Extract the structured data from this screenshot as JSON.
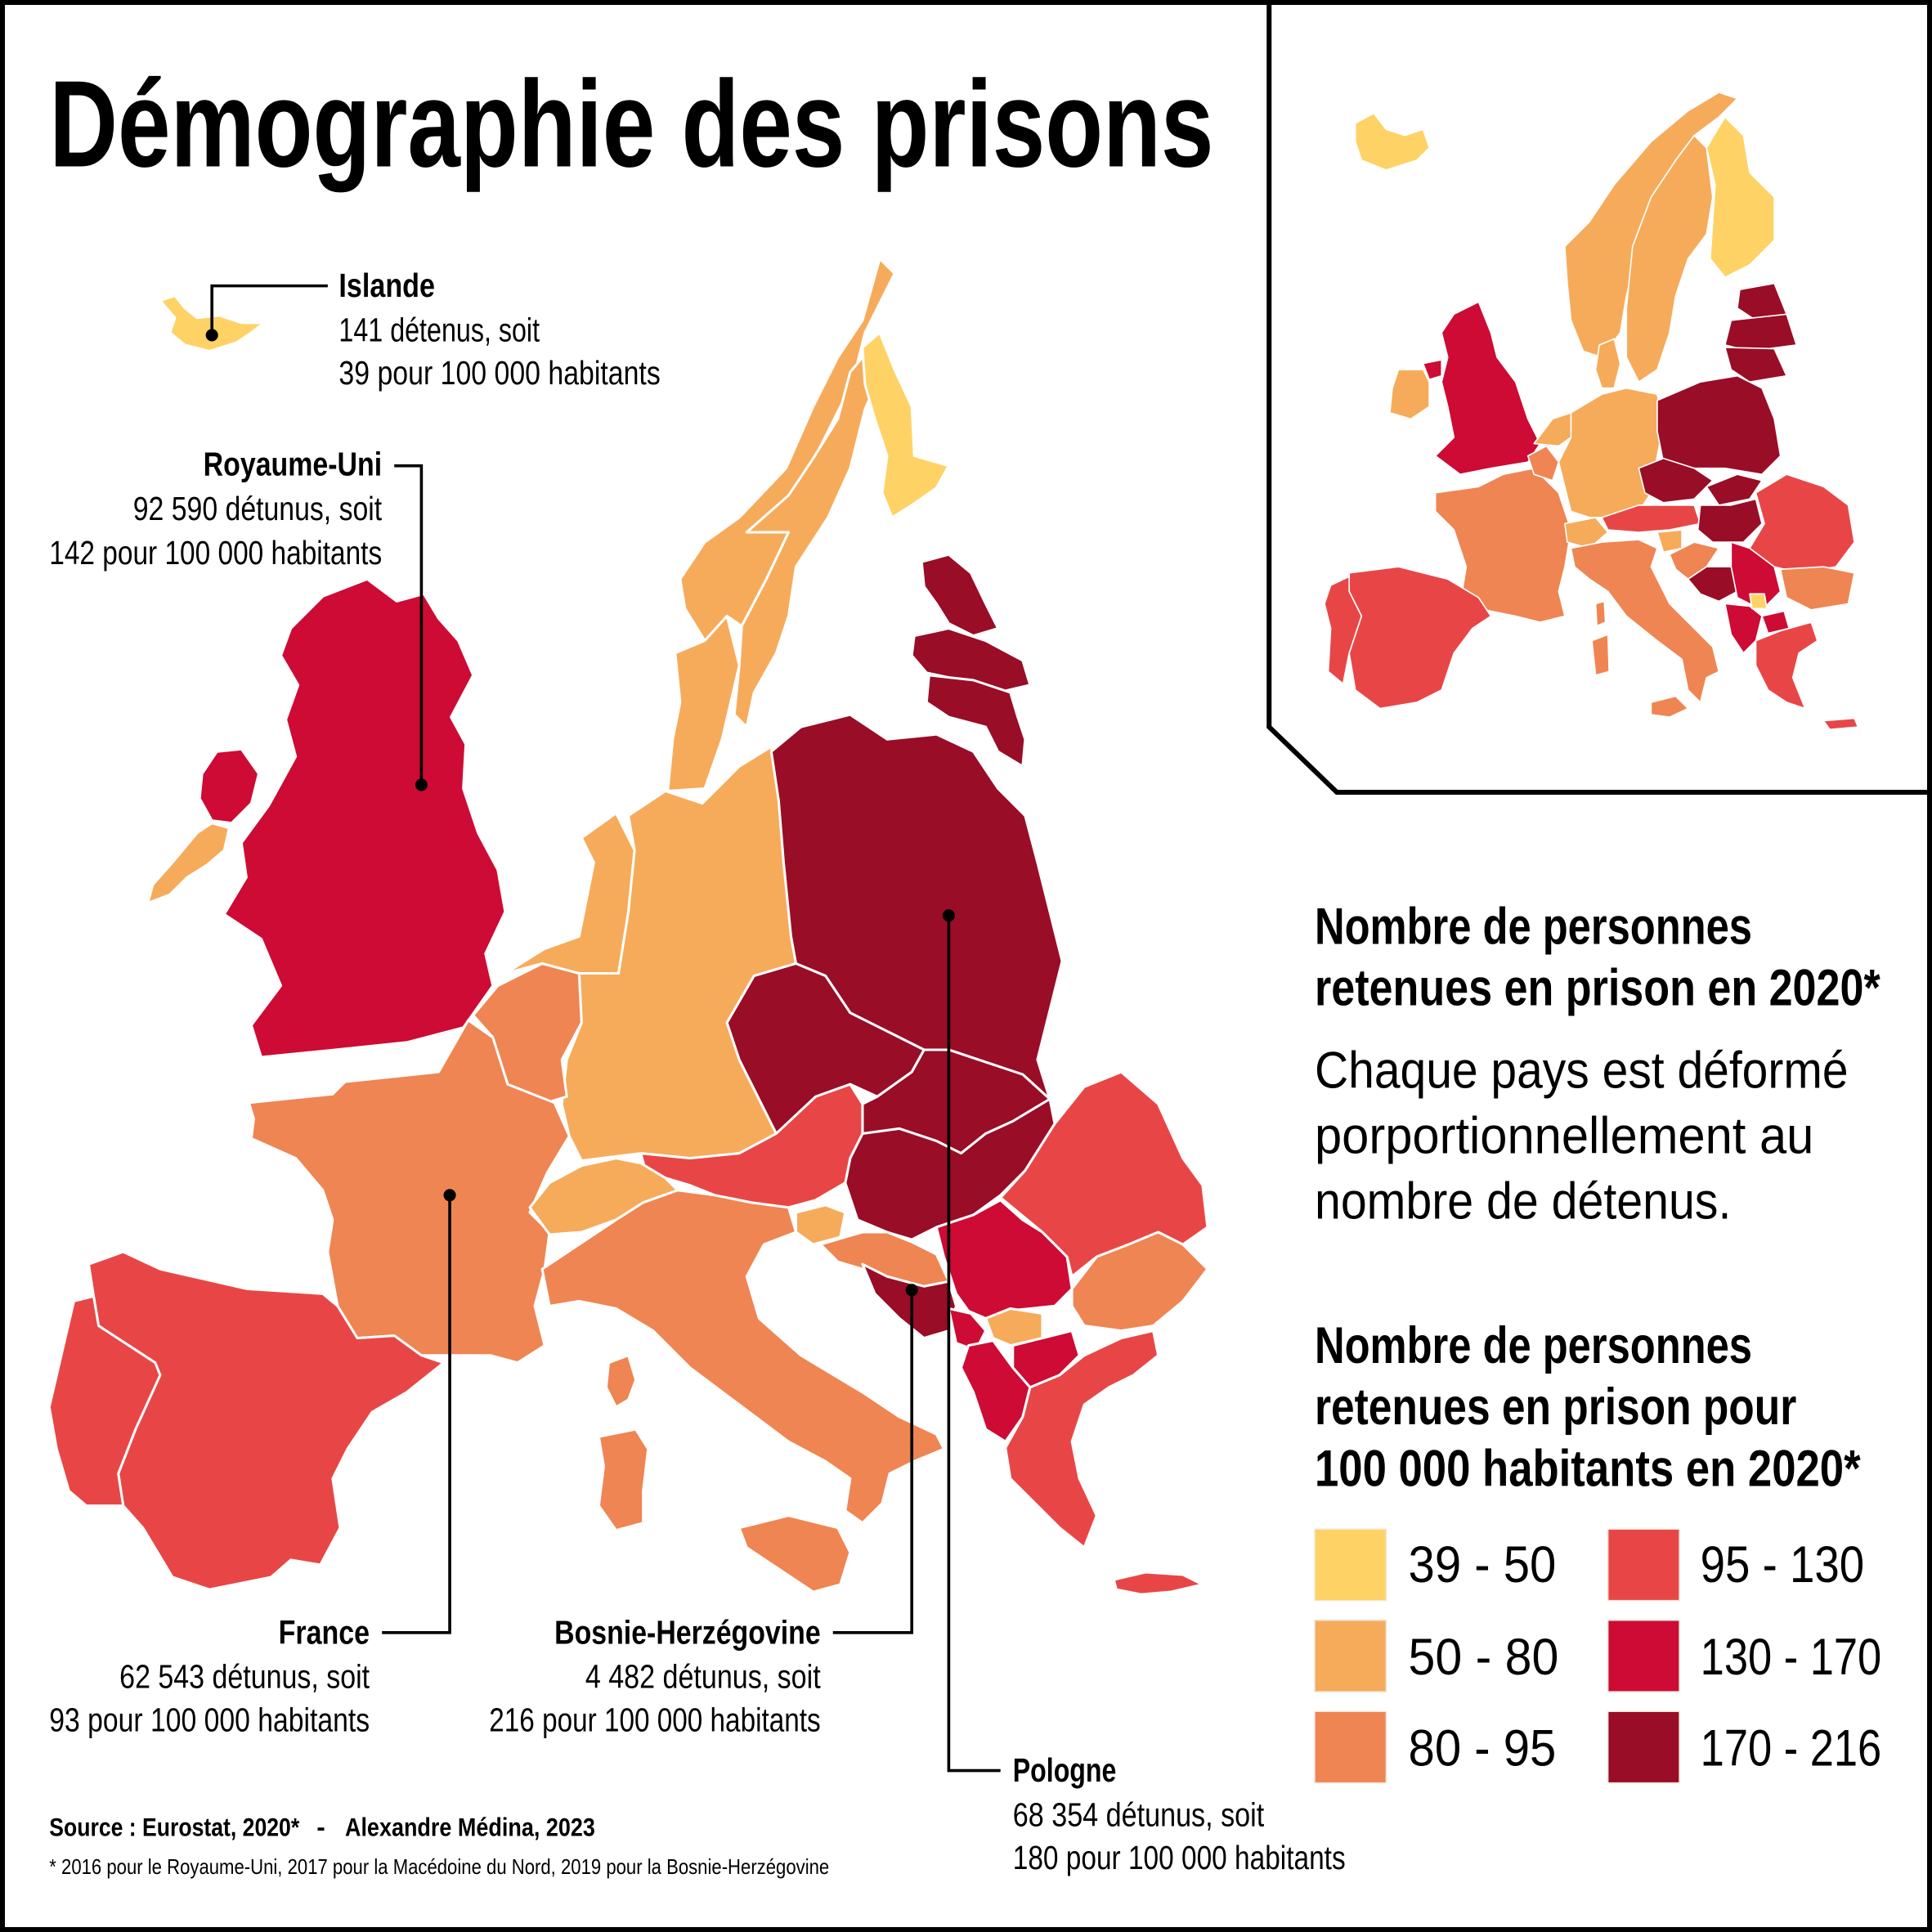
{
  "title": "Démographie des prisons",
  "callouts": {
    "iceland": {
      "name": "Islande",
      "line1": "141 détenus, soit",
      "line2": "39 pour 100 000 habitants"
    },
    "uk": {
      "name": "Royaume-Uni",
      "line1": "92 590 détunus, soit",
      "line2": "142 pour 100 000 habitants"
    },
    "france": {
      "name": "France",
      "line1": "62 543 détunus, soit",
      "line2": "93 pour 100 000 habitants"
    },
    "bosnia": {
      "name": "Bosnie-Herzégovine",
      "line1": "4 482 détunus, soit",
      "line2": "216 pour 100 000 habitants"
    },
    "poland": {
      "name": "Pologne",
      "line1": "68 354 détunus, soit",
      "line2": "180 pour 100 000 habitants"
    }
  },
  "legend": {
    "heading1": [
      "Nombre de personnes",
      "retenues en prison en 2020*"
    ],
    "description": [
      "Chaque pays est déformé",
      "porportionnellement au",
      "nombre de détenus."
    ],
    "heading2": [
      "Nombre de personnes",
      "retenues en prison pour",
      "100 000 habitants en 2020*"
    ],
    "bins": [
      {
        "label": "39 - 50",
        "color": "#FED265"
      },
      {
        "label": "50 - 80",
        "color": "#F6AB5B"
      },
      {
        "label": "80 - 95",
        "color": "#EF8552"
      },
      {
        "label": "95 - 130",
        "color": "#E84646"
      },
      {
        "label": "130 - 170",
        "color": "#CD0B34"
      },
      {
        "label": "170 - 216",
        "color": "#990D27"
      }
    ]
  },
  "footer": {
    "source": "Source : Eurostat, 2020*",
    "separator": "-",
    "author": "Alexandre Médina, 2023",
    "note": "* 2016 pour le Royaume-Uni, 2017 pour la Macédoine du Nord, 2019 pour la Bosnie-Herzégovine"
  },
  "colors": {
    "background": "#FFFFFF",
    "ink": "#000000",
    "country_border": "#FFFFFF"
  }
}
